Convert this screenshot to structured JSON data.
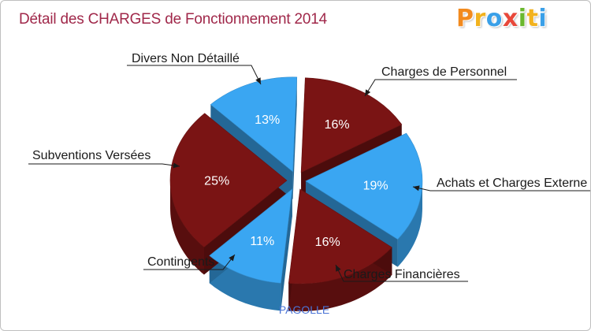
{
  "chart_data": {
    "type": "pie",
    "title": "Détail des CHARGES de Fonctionnement 2014",
    "subtitle": "PAGOLLE",
    "slices": [
      {
        "label": "Charges de Personnel",
        "value": 16,
        "pct_label": "16%",
        "color": "#7a1414"
      },
      {
        "label": "Achats et Charges Externes",
        "value": 19,
        "pct_label": "19%",
        "color": "#3aa6f2"
      },
      {
        "label": "Charges Financières",
        "value": 16,
        "pct_label": "16%",
        "color": "#7a1414"
      },
      {
        "label": "Contingents",
        "value": 11,
        "pct_label": "11%",
        "color": "#3aa6f2"
      },
      {
        "label": "Subventions Versées",
        "value": 25,
        "pct_label": "25%",
        "color": "#7a1414"
      },
      {
        "label": "Divers Non Détaillé",
        "value": 13,
        "pct_label": "13%",
        "color": "#3aa6f2"
      }
    ],
    "display_labels": {
      "achats": "Achats et Charges Externe"
    }
  },
  "logo": {
    "text": "Proxiti",
    "letters": [
      "P",
      "r",
      "o",
      "x",
      "i",
      "t",
      "i"
    ],
    "letter_colors": [
      "#f28a1e",
      "#f2b21e",
      "#3aa0e8",
      "#e8483a",
      "#6ab82e",
      "#f2b21e",
      "#3aa0e8"
    ]
  }
}
